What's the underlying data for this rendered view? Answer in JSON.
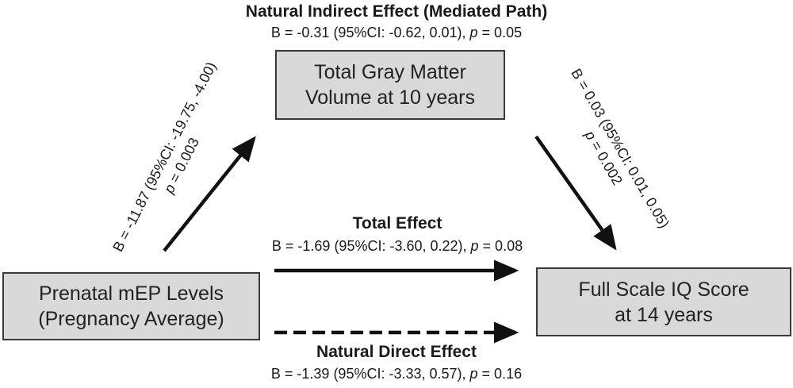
{
  "indirect": {
    "title": "Natural Indirect Effect (Mediated Path)",
    "stat_prefix": "B = -0.31 (95%CI: -0.62, 0.01), ",
    "stat_p": "p",
    "stat_suffix": " = 0.05"
  },
  "mediator": {
    "line1": "Total Gray Matter",
    "line2": "Volume at 10 years"
  },
  "exposure": {
    "line1": "Prenatal mEP Levels",
    "line2": "(Pregnancy Average)"
  },
  "outcome": {
    "line1": "Full Scale IQ Score",
    "line2": "at 14 years"
  },
  "path_a": {
    "line1": "B = -11.87 (95%CI: -19.75, -4.00)",
    "p": "p",
    "p_value": " = 0.003"
  },
  "path_b": {
    "line1": "B = 0.03 (95%CI: 0.01, 0.05)",
    "p": "p",
    "p_value": " = 0.002"
  },
  "total": {
    "title": "Total Effect",
    "stat_prefix": "B = -1.69 (95%CI: -3.60, 0.22), ",
    "stat_p": "p",
    "stat_suffix": " = 0.08"
  },
  "direct": {
    "title": "Natural Direct Effect",
    "stat_prefix": "B = -1.39 (95%CI: -3.33, 0.57), ",
    "stat_p": "p",
    "stat_suffix": " = 0.16"
  },
  "colors": {
    "box_fill": "#d9d9d9",
    "arrow": "#111111"
  }
}
